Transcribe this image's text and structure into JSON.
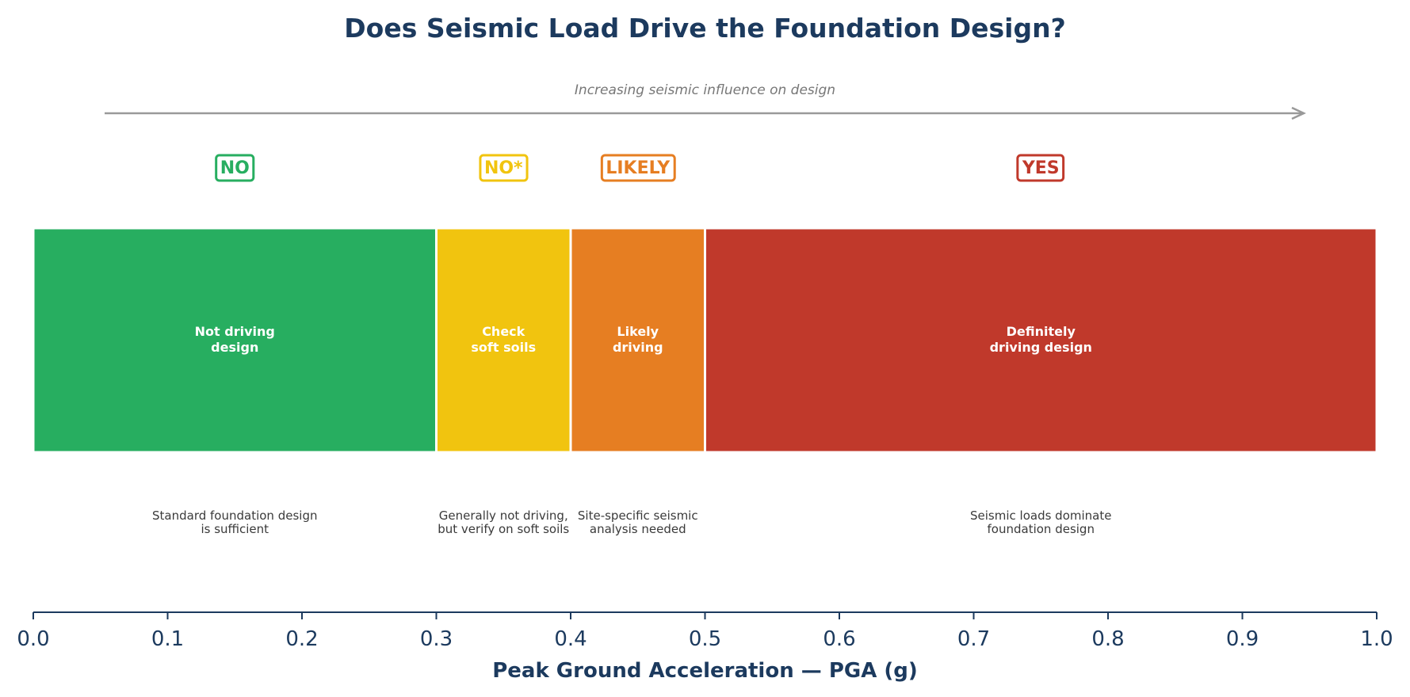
{
  "chart_data": {
    "type": "bar",
    "orientation": "horizontal-segments",
    "title": "Does Seismic Load Drive the Foundation Design?",
    "subtitle": "Increasing seismic influence on design",
    "xlabel": "Peak Ground Acceleration — PGA (g)",
    "xlim": [
      0.0,
      1.0
    ],
    "ticks": [
      0.0,
      0.1,
      0.2,
      0.3,
      0.4,
      0.5,
      0.6,
      0.7,
      0.8,
      0.9,
      1.0
    ],
    "tick_labels": [
      "0.0",
      "0.1",
      "0.2",
      "0.3",
      "0.4",
      "0.5",
      "0.6",
      "0.7",
      "0.8",
      "0.9",
      "1.0"
    ],
    "grid": false,
    "segments": [
      {
        "start": 0.0,
        "end": 0.3,
        "color": "#27ae60",
        "verdict": "NO",
        "label": [
          "Not driving",
          "design"
        ],
        "note": [
          "Standard foundation design",
          "is sufficient"
        ]
      },
      {
        "start": 0.3,
        "end": 0.4,
        "color": "#f1c40f",
        "verdict": "NO*",
        "label": [
          "Check",
          "soft soils"
        ],
        "note": [
          "Generally not driving,",
          "but verify on soft soils"
        ]
      },
      {
        "start": 0.4,
        "end": 0.5,
        "color": "#e67e22",
        "verdict": "LIKELY",
        "label": [
          "Likely",
          "driving"
        ],
        "note": [
          "Site-specific seismic",
          "analysis needed"
        ]
      },
      {
        "start": 0.5,
        "end": 1.0,
        "color": "#c0392b",
        "verdict": "YES",
        "label": [
          "Definitely",
          "driving design"
        ],
        "note": [
          "Seismic loads dominate",
          "foundation design"
        ]
      }
    ],
    "colors": {
      "title": "#1c3a5e",
      "axis": "#1c3a5e",
      "arrow": "#999999",
      "subtitle": "#777777"
    }
  }
}
